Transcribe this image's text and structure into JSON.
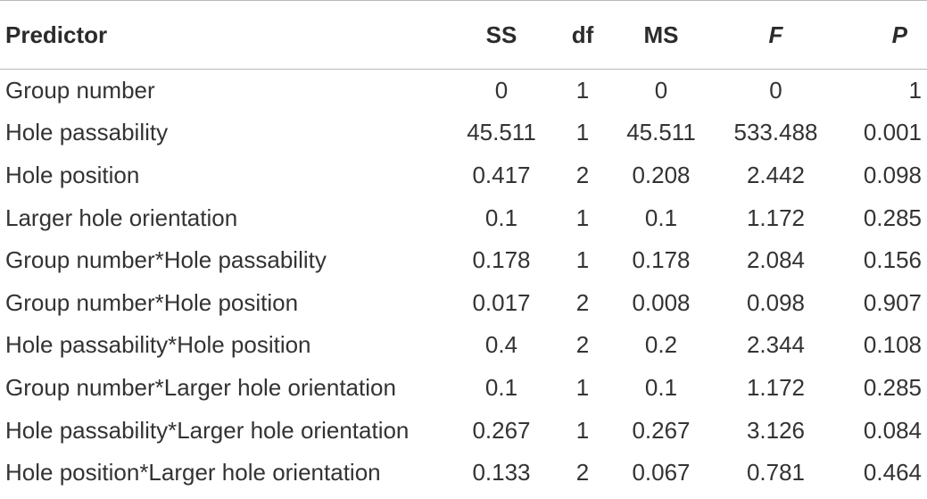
{
  "table": {
    "headers": {
      "predictor": "Predictor",
      "ss": "SS",
      "df": "df",
      "ms": "MS",
      "f": "F",
      "p": "P"
    },
    "rows": [
      {
        "predictor": "Group number",
        "ss": "0",
        "df": "1",
        "ms": "0",
        "f": "0",
        "p": "1"
      },
      {
        "predictor": "Hole passability",
        "ss": "45.511",
        "df": "1",
        "ms": "45.511",
        "f": "533.488",
        "p": "0.001"
      },
      {
        "predictor": "Hole position",
        "ss": "0.417",
        "df": "2",
        "ms": "0.208",
        "f": "2.442",
        "p": "0.098"
      },
      {
        "predictor": "Larger hole orientation",
        "ss": "0.1",
        "df": "1",
        "ms": "0.1",
        "f": "1.172",
        "p": "0.285"
      },
      {
        "predictor": "Group number*Hole passability",
        "ss": "0.178",
        "df": "1",
        "ms": "0.178",
        "f": "2.084",
        "p": "0.156"
      },
      {
        "predictor": "Group number*Hole position",
        "ss": "0.017",
        "df": "2",
        "ms": "0.008",
        "f": "0.098",
        "p": "0.907"
      },
      {
        "predictor": "Hole passability*Hole position",
        "ss": "0.4",
        "df": "2",
        "ms": "0.2",
        "f": "2.344",
        "p": "0.108"
      },
      {
        "predictor": "Group number*Larger hole orientation",
        "ss": "0.1",
        "df": "1",
        "ms": "0.1",
        "f": "1.172",
        "p": "0.285"
      },
      {
        "predictor": "Hole passability*Larger hole orientation",
        "ss": "0.267",
        "df": "1",
        "ms": "0.267",
        "f": "3.126",
        "p": "0.084"
      },
      {
        "predictor": "Hole position*Larger hole orientation",
        "ss": "0.133",
        "df": "2",
        "ms": "0.067",
        "f": "0.781",
        "p": "0.464"
      }
    ]
  }
}
